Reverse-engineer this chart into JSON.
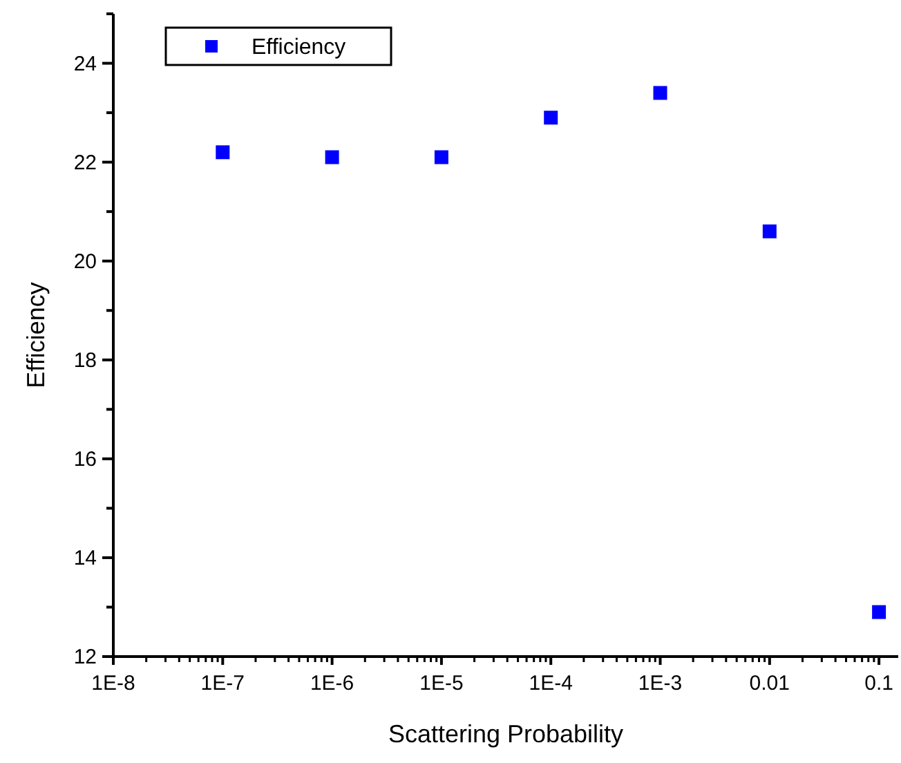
{
  "chart_data": {
    "type": "scatter",
    "xlabel": "Scattering Probability",
    "ylabel": "Efficiency",
    "x": [
      1e-07,
      1e-06,
      1e-05,
      0.0001,
      0.001,
      0.01,
      0.1
    ],
    "series": [
      {
        "name": "Efficiency",
        "color": "#0000ff",
        "values": [
          22.2,
          22.1,
          22.1,
          22.9,
          23.4,
          20.6,
          12.9
        ]
      }
    ],
    "log": "x",
    "xlim": [
      1e-08,
      0.15
    ],
    "xticks": [
      {
        "value": 1e-08,
        "label": "1E-8"
      },
      {
        "value": 2e-08,
        "label": null
      },
      {
        "value": 3e-08,
        "label": null
      },
      {
        "value": 4e-08,
        "label": null
      },
      {
        "value": 5e-08,
        "label": null
      },
      {
        "value": 6e-08,
        "label": null
      },
      {
        "value": 7e-08,
        "label": null
      },
      {
        "value": 8e-08,
        "label": null
      },
      {
        "value": 9e-08,
        "label": null
      },
      {
        "value": 1e-07,
        "label": "1E-7"
      },
      {
        "value": 2e-07,
        "label": null
      },
      {
        "value": 3e-07,
        "label": null
      },
      {
        "value": 4e-07,
        "label": null
      },
      {
        "value": 5e-07,
        "label": null
      },
      {
        "value": 6e-07,
        "label": null
      },
      {
        "value": 7e-07,
        "label": null
      },
      {
        "value": 8e-07,
        "label": null
      },
      {
        "value": 9e-07,
        "label": null
      },
      {
        "value": 1e-06,
        "label": "1E-6"
      },
      {
        "value": 2e-06,
        "label": null
      },
      {
        "value": 3e-06,
        "label": null
      },
      {
        "value": 4e-06,
        "label": null
      },
      {
        "value": 5e-06,
        "label": null
      },
      {
        "value": 6e-06,
        "label": null
      },
      {
        "value": 7e-06,
        "label": null
      },
      {
        "value": 8e-06,
        "label": null
      },
      {
        "value": 9e-06,
        "label": null
      },
      {
        "value": 1e-05,
        "label": "1E-5"
      },
      {
        "value": 2e-05,
        "label": null
      },
      {
        "value": 3e-05,
        "label": null
      },
      {
        "value": 4e-05,
        "label": null
      },
      {
        "value": 5e-05,
        "label": null
      },
      {
        "value": 6e-05,
        "label": null
      },
      {
        "value": 7e-05,
        "label": null
      },
      {
        "value": 8e-05,
        "label": null
      },
      {
        "value": 9e-05,
        "label": null
      },
      {
        "value": 0.0001,
        "label": "1E-4"
      },
      {
        "value": 0.0002,
        "label": null
      },
      {
        "value": 0.0003,
        "label": null
      },
      {
        "value": 0.0004,
        "label": null
      },
      {
        "value": 0.0005,
        "label": null
      },
      {
        "value": 0.0006,
        "label": null
      },
      {
        "value": 0.0007,
        "label": null
      },
      {
        "value": 0.0008,
        "label": null
      },
      {
        "value": 0.0009,
        "label": null
      },
      {
        "value": 0.001,
        "label": "1E-3"
      },
      {
        "value": 0.002,
        "label": null
      },
      {
        "value": 0.003,
        "label": null
      },
      {
        "value": 0.004,
        "label": null
      },
      {
        "value": 0.005,
        "label": null
      },
      {
        "value": 0.006,
        "label": null
      },
      {
        "value": 0.007,
        "label": null
      },
      {
        "value": 0.008,
        "label": null
      },
      {
        "value": 0.009,
        "label": null
      },
      {
        "value": 0.01,
        "label": "0.01"
      },
      {
        "value": 0.02,
        "label": null
      },
      {
        "value": 0.03,
        "label": null
      },
      {
        "value": 0.04,
        "label": null
      },
      {
        "value": 0.05,
        "label": null
      },
      {
        "value": 0.06,
        "label": null
      },
      {
        "value": 0.07,
        "label": null
      },
      {
        "value": 0.08,
        "label": null
      },
      {
        "value": 0.09,
        "label": null
      },
      {
        "value": 0.1,
        "label": "0.1"
      }
    ],
    "ylim": [
      12,
      25
    ],
    "yticks": [
      12,
      {
        "value": 13,
        "label": null
      },
      14,
      {
        "value": 15,
        "label": null
      },
      16,
      {
        "value": 17,
        "label": null
      },
      18,
      {
        "value": 19,
        "label": null
      },
      20,
      {
        "value": 21,
        "label": null
      },
      22,
      {
        "value": 23,
        "label": null
      },
      24,
      {
        "value": 25,
        "label": null
      }
    ],
    "legend": "top left",
    "marker": "square",
    "grid": false
  }
}
